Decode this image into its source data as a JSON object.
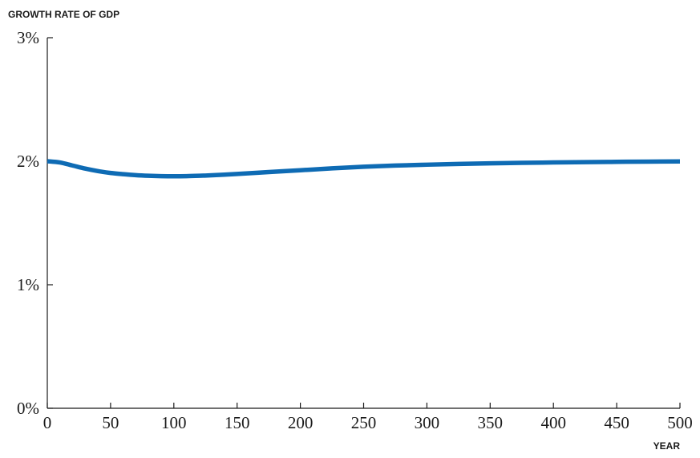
{
  "chart_data": {
    "type": "line",
    "title": "",
    "ylabel": "GROWTH RATE OF GDP",
    "xlabel": "YEAR",
    "xlim": [
      0,
      500
    ],
    "ylim": [
      0,
      3
    ],
    "x_ticks": [
      0,
      50,
      100,
      150,
      200,
      250,
      300,
      350,
      400,
      450,
      500
    ],
    "x_tick_labels": [
      "0",
      "50",
      "100",
      "150",
      "200",
      "250",
      "300",
      "350",
      "400",
      "450",
      "500"
    ],
    "y_ticks": [
      0,
      1,
      2,
      3
    ],
    "y_tick_labels": [
      "0%",
      "1%",
      "2%",
      "3%"
    ],
    "grid": false,
    "line_color": "#0e6bb4",
    "series": [
      {
        "x": [
          0,
          10,
          20,
          30,
          40,
          50,
          60,
          70,
          80,
          90,
          100,
          110,
          120,
          130,
          140,
          150,
          175,
          200,
          225,
          250,
          275,
          300,
          325,
          350,
          375,
          400,
          425,
          450,
          475,
          500
        ],
        "values": [
          2.0,
          1.99,
          1.965,
          1.94,
          1.92,
          1.905,
          1.895,
          1.887,
          1.882,
          1.879,
          1.878,
          1.879,
          1.882,
          1.886,
          1.891,
          1.897,
          1.912,
          1.927,
          1.942,
          1.955,
          1.965,
          1.972,
          1.978,
          1.983,
          1.987,
          1.99,
          1.993,
          1.995,
          1.997,
          1.998
        ]
      }
    ]
  }
}
